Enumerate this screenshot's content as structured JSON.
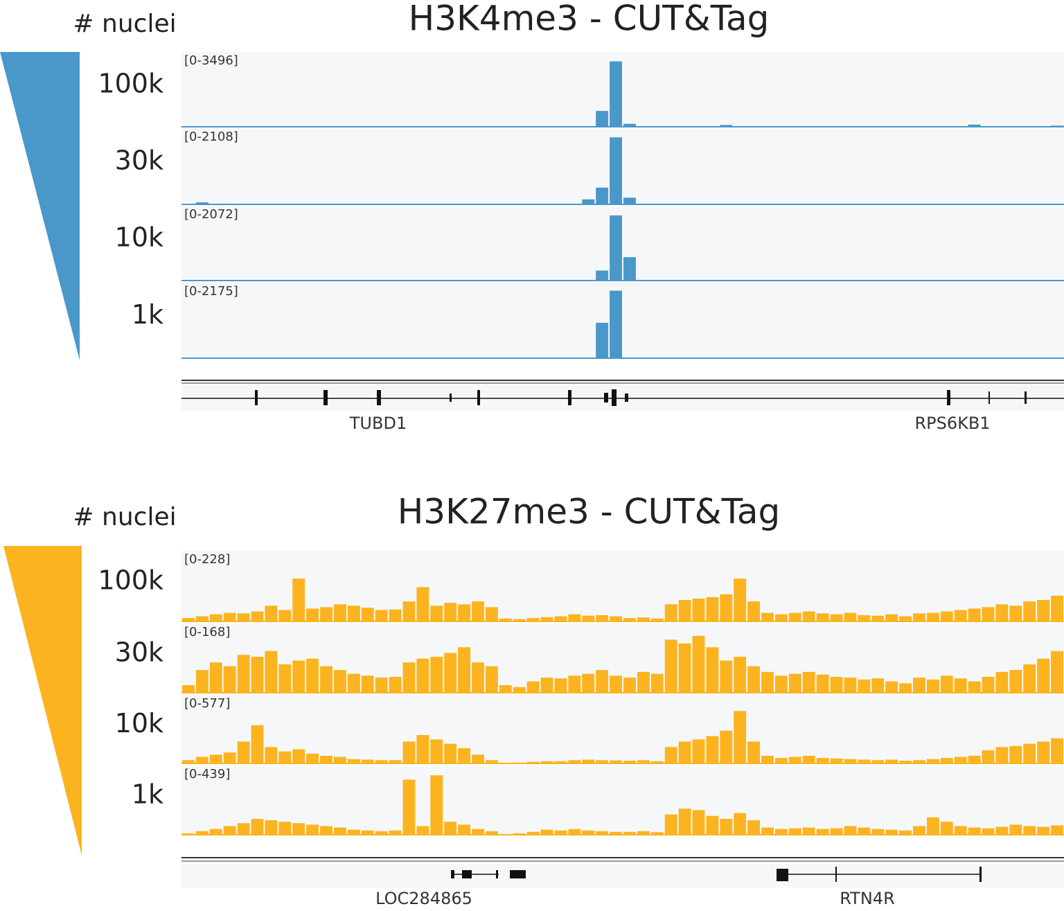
{
  "chart_data": [
    {
      "type": "coverage",
      "title": "H3K4me3 - CUT&Tag",
      "side_label": "# nuclei",
      "color": "#4a98c9",
      "tracks": [
        {
          "name": "100k",
          "range_label": "[0-3496]",
          "ylim": [
            0,
            3496
          ],
          "values": [
            0,
            0,
            0,
            0,
            0,
            0,
            0,
            0,
            0,
            0,
            0,
            0,
            0,
            0,
            0,
            0,
            0,
            0,
            0,
            0,
            0,
            0,
            0,
            0,
            0,
            0,
            0,
            0,
            0,
            0,
            800,
            3300,
            150,
            0,
            0,
            0,
            0,
            0,
            0,
            90,
            0,
            0,
            0,
            0,
            0,
            0,
            0,
            0,
            0,
            0,
            0,
            0,
            0,
            0,
            0,
            0,
            0,
            110,
            0,
            0,
            0,
            0,
            0,
            60
          ]
        },
        {
          "name": "30k",
          "range_label": "[0-2108]",
          "ylim": [
            0,
            2108
          ],
          "values": [
            0,
            60,
            0,
            0,
            0,
            0,
            0,
            0,
            0,
            0,
            0,
            0,
            0,
            0,
            0,
            0,
            0,
            0,
            0,
            0,
            0,
            0,
            0,
            0,
            0,
            0,
            0,
            0,
            0,
            150,
            500,
            2000,
            200,
            0,
            0,
            0,
            0,
            0,
            0,
            0,
            0,
            0,
            0,
            0,
            0,
            0,
            0,
            0,
            0,
            0,
            0,
            0,
            0,
            0,
            0,
            0,
            0,
            0,
            0,
            0,
            0,
            0,
            0,
            0
          ]
        },
        {
          "name": "10k",
          "range_label": "[0-2072]",
          "ylim": [
            0,
            2072
          ],
          "values": [
            0,
            0,
            0,
            0,
            0,
            0,
            0,
            0,
            0,
            0,
            0,
            0,
            0,
            0,
            0,
            0,
            0,
            0,
            0,
            0,
            0,
            0,
            0,
            0,
            0,
            0,
            0,
            0,
            0,
            0,
            300,
            1950,
            700,
            0,
            0,
            0,
            0,
            0,
            0,
            0,
            0,
            0,
            0,
            0,
            0,
            0,
            0,
            0,
            0,
            0,
            0,
            0,
            0,
            0,
            0,
            0,
            0,
            0,
            0,
            0,
            0,
            0,
            0,
            0
          ]
        },
        {
          "name": "1k",
          "range_label": "[0-2175]",
          "ylim": [
            0,
            2175
          ],
          "values": [
            0,
            0,
            0,
            0,
            0,
            0,
            0,
            0,
            0,
            0,
            0,
            0,
            0,
            0,
            0,
            0,
            0,
            0,
            0,
            0,
            0,
            0,
            0,
            0,
            0,
            0,
            0,
            0,
            0,
            0,
            1100,
            2100,
            0,
            0,
            0,
            0,
            0,
            0,
            0,
            0,
            0,
            0,
            0,
            0,
            0,
            0,
            0,
            0,
            0,
            0,
            0,
            0,
            0,
            0,
            0,
            0,
            0,
            0,
            0,
            0,
            0,
            0,
            0,
            0
          ]
        }
      ],
      "genes": [
        "TUBD1",
        "RPS6KB1"
      ]
    },
    {
      "type": "coverage",
      "title": "H3K27me3 - CUT&Tag",
      "side_label": "# nuclei",
      "color": "#fbb41f",
      "tracks": [
        {
          "name": "100k",
          "range_label": "[0-228]",
          "ylim": [
            0,
            228
          ],
          "values": [
            12,
            18,
            25,
            30,
            28,
            35,
            55,
            40,
            150,
            45,
            50,
            60,
            55,
            48,
            40,
            42,
            70,
            120,
            55,
            65,
            60,
            70,
            50,
            10,
            8,
            12,
            15,
            18,
            25,
            20,
            22,
            18,
            12,
            14,
            10,
            60,
            75,
            80,
            85,
            95,
            150,
            70,
            30,
            25,
            30,
            35,
            28,
            25,
            30,
            22,
            20,
            25,
            18,
            28,
            30,
            35,
            40,
            45,
            50,
            60,
            55,
            70,
            75,
            90
          ]
        },
        {
          "name": "30k",
          "range_label": "[0-168]",
          "ylim": [
            0,
            168
          ],
          "values": [
            20,
            60,
            80,
            70,
            100,
            95,
            110,
            75,
            85,
            90,
            70,
            60,
            50,
            45,
            40,
            42,
            80,
            90,
            95,
            105,
            120,
            80,
            70,
            20,
            15,
            30,
            40,
            38,
            45,
            50,
            60,
            45,
            40,
            55,
            50,
            140,
            130,
            150,
            120,
            85,
            95,
            70,
            55,
            45,
            50,
            55,
            48,
            42,
            40,
            35,
            38,
            30,
            25,
            40,
            35,
            45,
            38,
            30,
            42,
            55,
            60,
            75,
            90,
            110
          ]
        },
        {
          "name": "10k",
          "range_label": "[0-577]",
          "ylim": [
            0,
            577
          ],
          "values": [
            30,
            60,
            80,
            100,
            200,
            350,
            150,
            110,
            130,
            90,
            70,
            60,
            40,
            35,
            30,
            30,
            200,
            260,
            220,
            180,
            140,
            80,
            30,
            5,
            8,
            15,
            20,
            20,
            30,
            35,
            30,
            28,
            25,
            30,
            20,
            150,
            200,
            220,
            250,
            300,
            480,
            200,
            70,
            50,
            60,
            70,
            50,
            45,
            40,
            35,
            30,
            35,
            25,
            30,
            40,
            50,
            60,
            70,
            120,
            150,
            160,
            180,
            200,
            230
          ]
        },
        {
          "name": "1k",
          "range_label": "[0-439]",
          "ylim": [
            0,
            439
          ],
          "values": [
            10,
            25,
            40,
            60,
            80,
            110,
            100,
            90,
            80,
            70,
            60,
            50,
            35,
            30,
            25,
            30,
            380,
            60,
            410,
            90,
            70,
            40,
            25,
            5,
            10,
            20,
            35,
            30,
            40,
            30,
            25,
            20,
            20,
            25,
            18,
            140,
            180,
            170,
            130,
            110,
            150,
            100,
            50,
            40,
            45,
            50,
            40,
            45,
            60,
            50,
            40,
            35,
            30,
            60,
            120,
            90,
            60,
            50,
            45,
            55,
            70,
            60,
            55,
            65
          ]
        }
      ],
      "genes": [
        "LOC284865",
        "RTN4R"
      ]
    }
  ]
}
